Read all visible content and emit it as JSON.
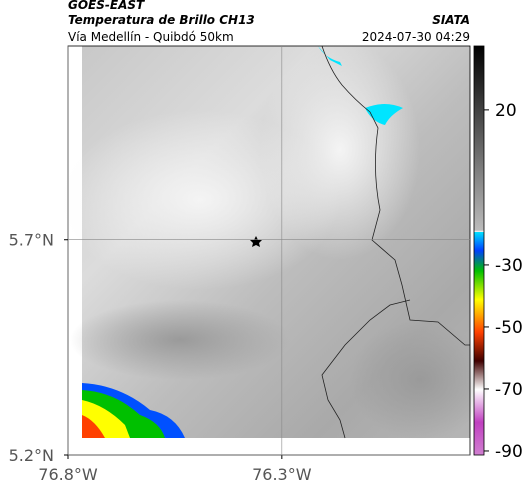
{
  "header": {
    "satellite": "GOES-EAST",
    "product": "Temperatura de Brillo CH13",
    "source": "SIATA",
    "region": "Vía Medellín - Quibdó 50km",
    "datetime": "2024-07-30 04:29"
  },
  "map": {
    "xlim": [
      -76.8,
      -75.86
    ],
    "ylim": [
      5.2,
      6.15
    ],
    "xticks": [
      {
        "value": -76.8,
        "label": "76.8°W"
      },
      {
        "value": -76.3,
        "label": "76.3°W"
      }
    ],
    "yticks": [
      {
        "value": 5.2,
        "label": "5.2°N"
      },
      {
        "value": 5.7,
        "label": "5.7°N"
      }
    ],
    "grid": true
  },
  "colorbar": {
    "lim": [
      40.6,
      -91.3
    ],
    "ticks": [
      20,
      -30,
      -50,
      -70,
      -90
    ]
  }
}
